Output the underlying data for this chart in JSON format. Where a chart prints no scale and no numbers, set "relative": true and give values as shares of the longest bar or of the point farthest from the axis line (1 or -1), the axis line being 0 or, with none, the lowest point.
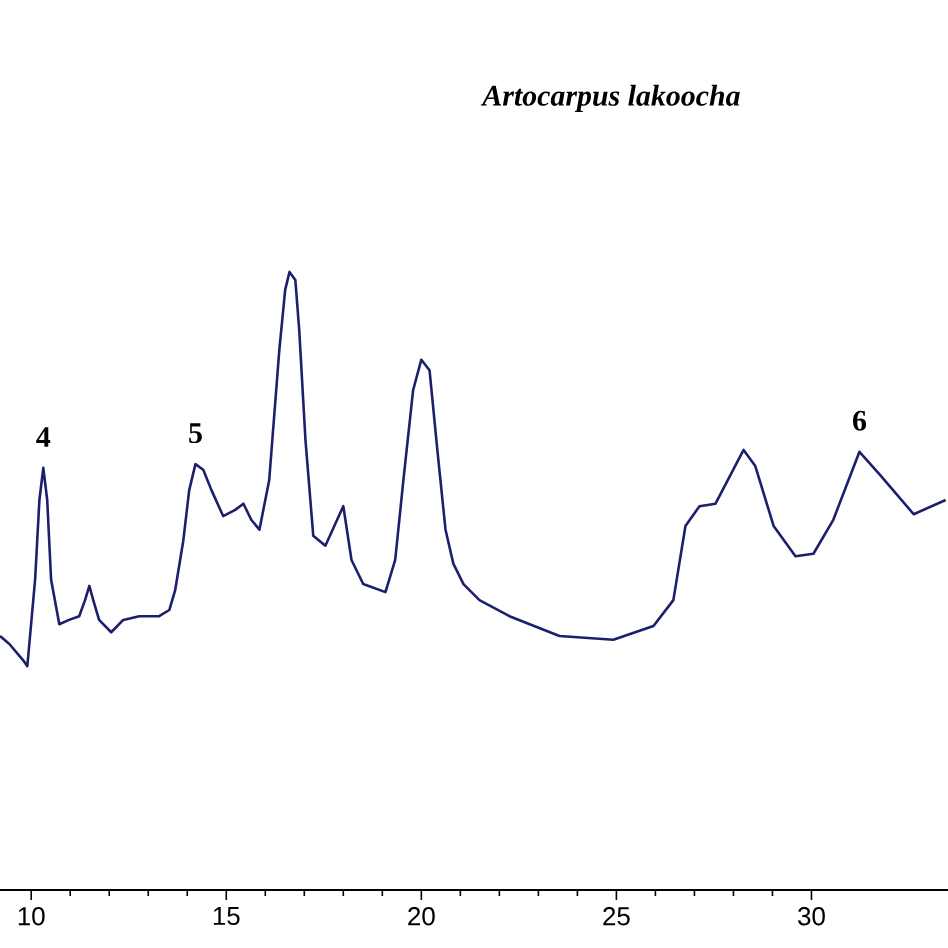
{
  "chart_data": {
    "type": "line",
    "title": "Artocarpus lakoocha",
    "relative": true,
    "color": "#1c1f6b",
    "x": [
      9.2,
      9.44,
      9.79,
      9.9,
      10.1,
      10.21,
      10.31,
      10.41,
      10.51,
      10.72,
      10.97,
      11.23,
      11.38,
      11.49,
      11.59,
      11.74,
      12.05,
      12.36,
      12.77,
      13.28,
      13.54,
      13.69,
      13.9,
      14.05,
      14.21,
      14.41,
      14.62,
      14.92,
      15.23,
      15.44,
      15.64,
      15.85,
      16.1,
      16.36,
      16.51,
      16.62,
      16.77,
      16.87,
      17.03,
      17.23,
      17.54,
      18.0,
      18.21,
      18.51,
      19.08,
      19.33,
      19.54,
      19.79,
      20.0,
      20.21,
      20.41,
      20.62,
      20.82,
      21.08,
      21.49,
      22.26,
      23.54,
      24.92,
      25.95,
      26.46,
      26.77,
      27.13,
      27.54,
      28.26,
      28.56,
      29.03,
      29.59,
      30.05,
      30.56,
      31.23,
      31.74,
      32.62,
      33.44
    ],
    "values": [
      0.411,
      0.398,
      0.372,
      0.362,
      0.502,
      0.631,
      0.683,
      0.631,
      0.502,
      0.43,
      0.437,
      0.443,
      0.469,
      0.492,
      0.469,
      0.437,
      0.417,
      0.437,
      0.443,
      0.443,
      0.453,
      0.485,
      0.566,
      0.647,
      0.689,
      0.68,
      0.647,
      0.605,
      0.615,
      0.625,
      0.599,
      0.583,
      0.663,
      0.874,
      0.971,
      1,
      0.987,
      0.906,
      0.728,
      0.573,
      0.557,
      0.621,
      0.534,
      0.495,
      0.482,
      0.534,
      0.663,
      0.809,
      0.858,
      0.841,
      0.712,
      0.583,
      0.528,
      0.495,
      0.469,
      0.443,
      0.411,
      0.405,
      0.427,
      0.469,
      0.589,
      0.621,
      0.625,
      0.712,
      0.686,
      0.589,
      0.54,
      0.544,
      0.599,
      0.709,
      0.673,
      0.608,
      0.631
    ],
    "xlim": [
      9.2,
      33.5
    ],
    "xticks": [
      10,
      15,
      20,
      25,
      30
    ],
    "annotations": [
      {
        "text": "4",
        "x": 10.31,
        "y": 0.683
      },
      {
        "text": "5",
        "x": 14.21,
        "y": 0.689
      },
      {
        "text": "6",
        "x": 31.23,
        "y": 0.709
      }
    ]
  }
}
